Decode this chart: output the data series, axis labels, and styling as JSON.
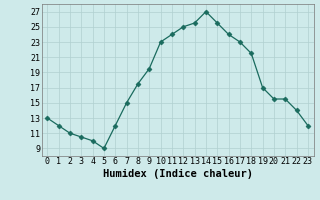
{
  "x": [
    0,
    1,
    2,
    3,
    4,
    5,
    6,
    7,
    8,
    9,
    10,
    11,
    12,
    13,
    14,
    15,
    16,
    17,
    18,
    19,
    20,
    21,
    22,
    23
  ],
  "y": [
    13,
    12,
    11,
    10.5,
    10,
    9,
    12,
    15,
    17.5,
    19.5,
    23,
    24,
    25,
    25.5,
    27,
    25.5,
    24,
    23,
    21.5,
    17,
    15.5,
    15.5,
    14,
    12
  ],
  "xlabel": "Humidex (Indice chaleur)",
  "xlim": [
    -0.5,
    23.5
  ],
  "ylim": [
    8,
    28
  ],
  "yticks": [
    9,
    11,
    13,
    15,
    17,
    19,
    21,
    23,
    25,
    27
  ],
  "xtick_labels": [
    "0",
    "1",
    "2",
    "3",
    "4",
    "5",
    "6",
    "7",
    "8",
    "9",
    "10",
    "11",
    "12",
    "13",
    "14",
    "15",
    "16",
    "17",
    "18",
    "19",
    "20",
    "21",
    "22",
    "23"
  ],
  "line_color": "#1a6b5e",
  "marker": "D",
  "marker_size": 2.5,
  "bg_color": "#ceeaea",
  "grid_color": "#b0d0d0",
  "label_fontsize": 7.5,
  "tick_fontsize": 6
}
